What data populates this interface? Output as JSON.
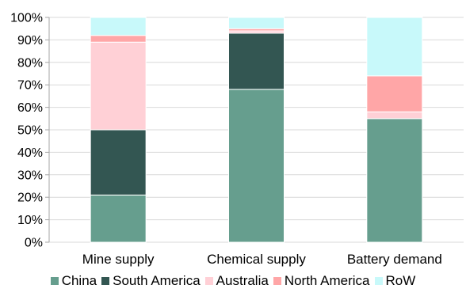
{
  "chart_data": {
    "type": "bar",
    "stacked": true,
    "categories": [
      "Mine supply",
      "Chemical supply",
      "Battery demand"
    ],
    "series": [
      {
        "name": "China",
        "color": "#669e8e",
        "values": [
          21,
          68,
          55
        ]
      },
      {
        "name": "South America",
        "color": "#335652",
        "values": [
          29,
          25,
          0
        ]
      },
      {
        "name": "Australia",
        "color": "#ffd0d6",
        "values": [
          39,
          1,
          3
        ]
      },
      {
        "name": "North America",
        "color": "#ffa6a7",
        "values": [
          3,
          1,
          16
        ]
      },
      {
        "name": "RoW",
        "color": "#c8f9fa",
        "values": [
          8,
          5,
          26
        ]
      }
    ],
    "y_ticks": [
      "0%",
      "10%",
      "20%",
      "30%",
      "40%",
      "50%",
      "60%",
      "70%",
      "80%",
      "90%",
      "100%"
    ],
    "ylim": [
      0,
      100
    ],
    "grid": true,
    "legend_position": "bottom"
  }
}
